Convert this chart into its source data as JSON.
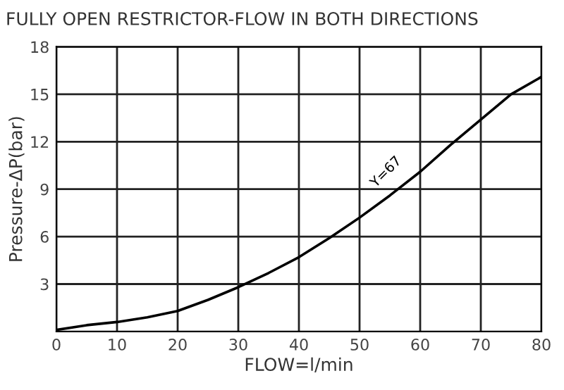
{
  "chart_data": {
    "type": "line",
    "title": "FULLY OPEN RESTRICTOR-FLOW IN BOTH DIRECTIONS",
    "xlabel": "FLOW=l/min",
    "ylabel": "Pressure-ΔP(bar)",
    "x": [
      0,
      5,
      10,
      15,
      20,
      25,
      30,
      35,
      40,
      45,
      50,
      55,
      60,
      65,
      70,
      75,
      80
    ],
    "series": [
      {
        "color": "#000000",
        "values": [
          0.1,
          0.4,
          0.6,
          0.9,
          1.3,
          2.0,
          2.8,
          3.7,
          4.7,
          5.9,
          7.2,
          8.6,
          10.1,
          11.8,
          13.4,
          15.0,
          16.1
        ]
      }
    ],
    "annotations": [
      "Y=67"
    ],
    "xlim": [
      0,
      80
    ],
    "xticks": [
      0,
      10,
      20,
      30,
      40,
      50,
      60,
      70,
      80
    ],
    "ylim": [
      0,
      18
    ],
    "yticks": [
      3,
      6,
      9,
      12,
      15,
      18
    ],
    "grid": true
  }
}
